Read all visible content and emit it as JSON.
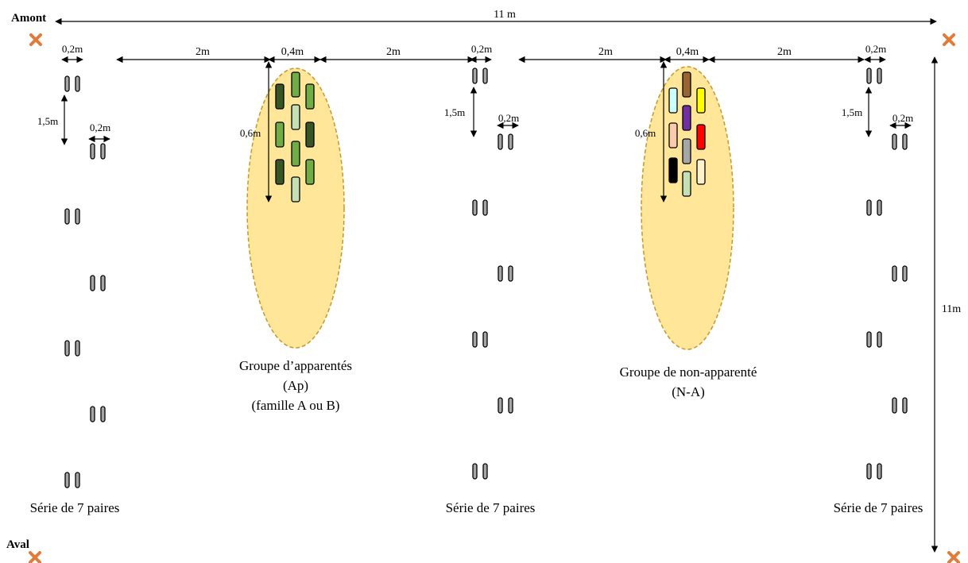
{
  "labels": {
    "amont": "Amont",
    "aval": "Aval",
    "width_total": "11 m",
    "height_total": "11m",
    "pair_gap": "0,2m",
    "row_gap": "1,5m",
    "group_gap": "2m",
    "group_width": "0,4m",
    "group_height": "0,6m",
    "group_ap_line1": "Groupe d’apparentés",
    "group_ap_line2": "(Ap)",
    "group_ap_line3": "(famille A ou B)",
    "group_na_line1": "Groupe de non-apparenté",
    "group_na_line2": "(N-A)",
    "series_label": "Série de 7 paires"
  },
  "colors": {
    "marker": "#e07b39",
    "ellipse_fill": "#ffe699",
    "ellipse_stroke": "#c8962a",
    "pot_grey": "#a6a6a6",
    "ap_dark": "#375623",
    "ap_mid": "#70ad47",
    "ap_light": "#c5e0b4",
    "na_brown": "#996633",
    "na_cyan": "#ccffff",
    "na_yellow": "#ffff00",
    "na_purple": "#7030a0",
    "na_peach": "#f8cbad",
    "na_grey": "#a6a6a6",
    "na_red": "#ff0000",
    "na_black": "#000000",
    "na_pale": "#fff2cc",
    "na_lightgreen": "#c5e0b4"
  },
  "icons": [
    "cross-marker-icon"
  ]
}
